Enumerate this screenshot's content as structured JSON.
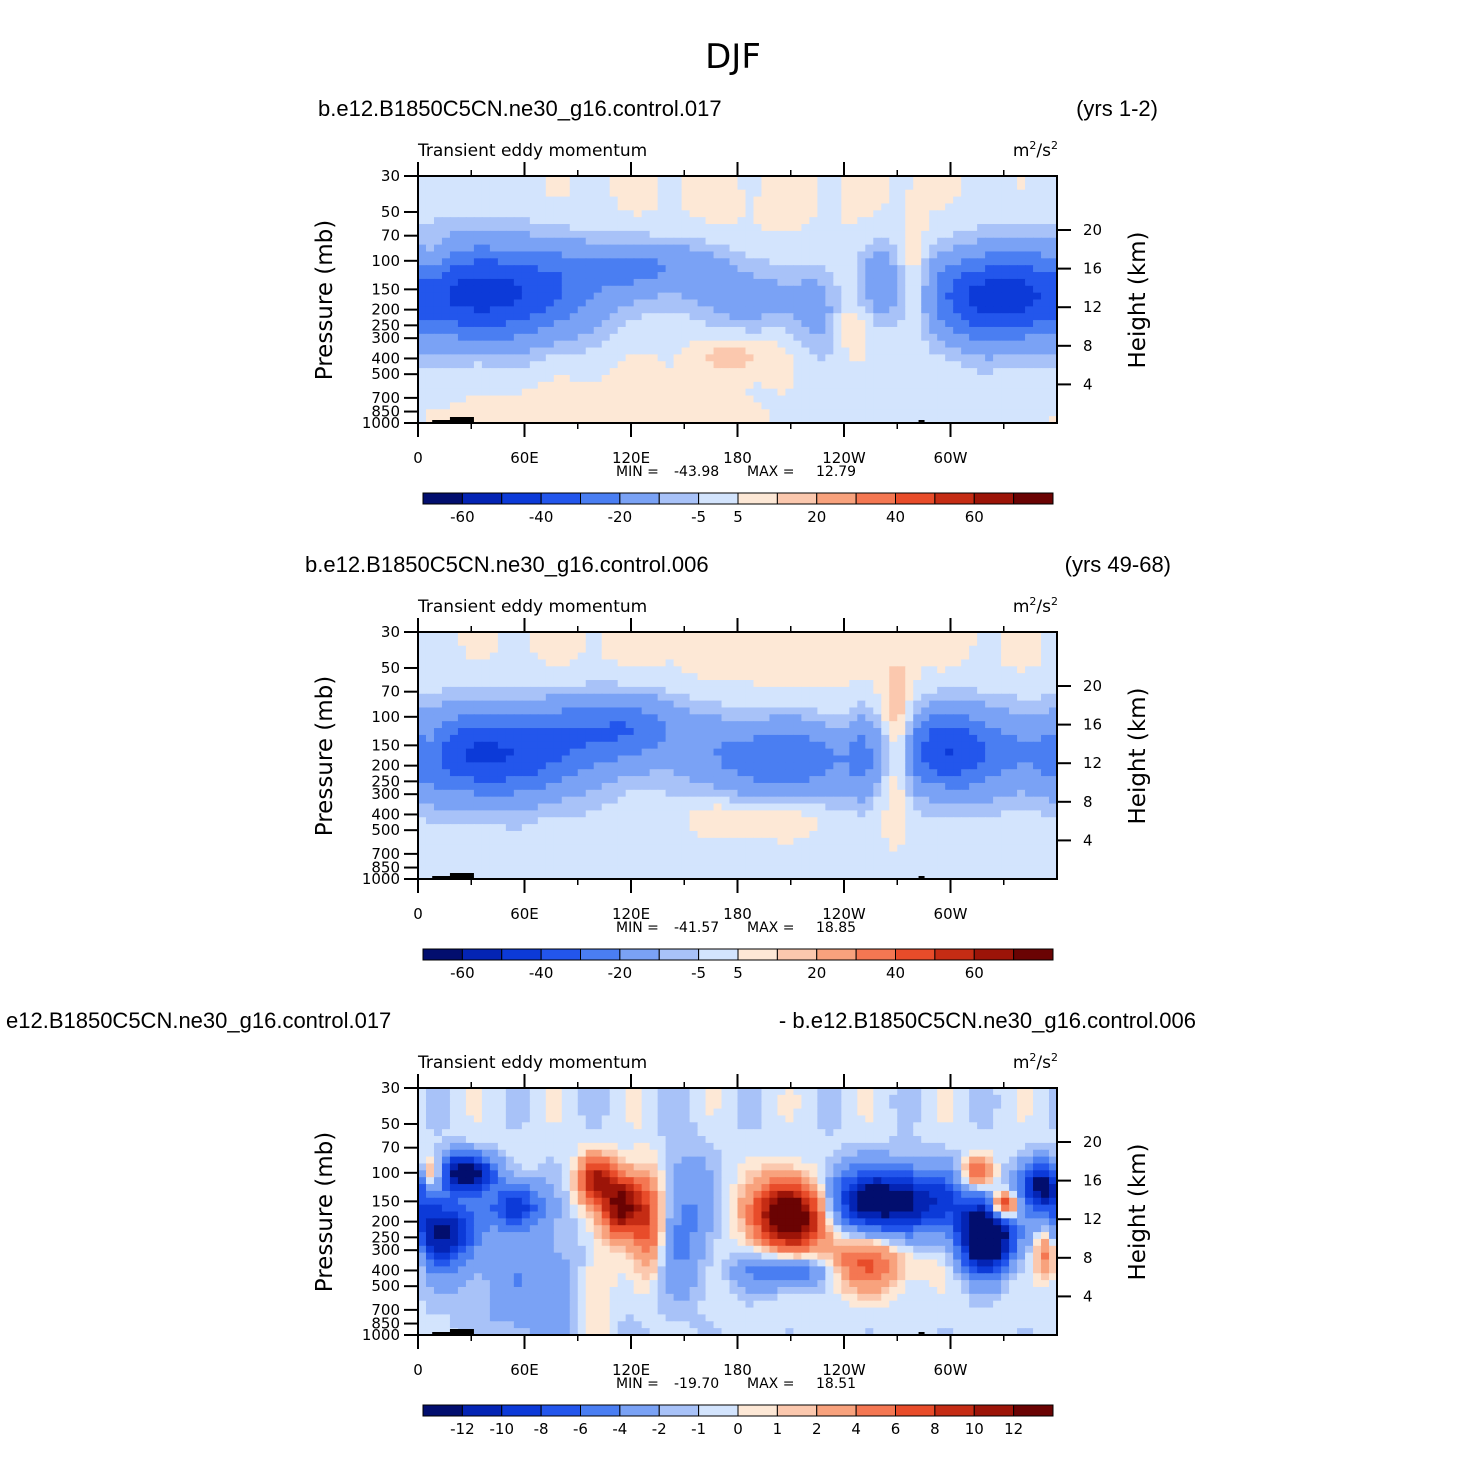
{
  "season": "DJF",
  "colors": [
    "#020e6e",
    "#0424b4",
    "#0c3ad8",
    "#2356ec",
    "#4a7ef2",
    "#7aa2f5",
    "#a8c2f8",
    "#d3e4fd",
    "#fde8d6",
    "#fbc8ae",
    "#f8a27d",
    "#f47752",
    "#e84c2a",
    "#c52c14",
    "#9c1408",
    "#6a0303"
  ],
  "chart_data": [
    {
      "type": "heatmap",
      "case_title": "b.e12.B1850C5CN.ne30_g16.control.017",
      "years": "(yrs 1-2)",
      "variable": "Transient eddy momentum",
      "units_base": "m",
      "units_exp1": "2",
      "units_mid": "/s",
      "units_exp2": "2",
      "ylabel": "Pressure (mb)",
      "y2label": "Height (km)",
      "x_ticks": [
        "0",
        "60E",
        "120E",
        "180",
        "120W",
        "60W"
      ],
      "pressure_ticks": [
        "30",
        "50",
        "70",
        "100",
        "150",
        "200",
        "250",
        "300",
        "400",
        "500",
        "700",
        "850",
        "1000"
      ],
      "height_ticks": [
        "20",
        "16",
        "12",
        "8",
        "4"
      ],
      "min_label": "MIN =",
      "min_value": "-43.98",
      "max_label": "MAX =",
      "max_value": "12.79",
      "colorbar_labels": [
        "-60",
        "-40",
        "-20",
        "-5",
        "5",
        "20",
        "40",
        "60"
      ],
      "blobs": [
        {
          "lon": 40,
          "p": 160,
          "dlon": 42,
          "dlogp": 0.22,
          "v": -44
        },
        {
          "lon": 120,
          "p": 110,
          "dlon": 28,
          "dlogp": 0.12,
          "v": -14
        },
        {
          "lon": 150,
          "p": 110,
          "dlon": 20,
          "dlogp": 0.12,
          "v": -8
        },
        {
          "lon": 185,
          "p": 170,
          "dlon": 22,
          "dlogp": 0.15,
          "v": -14
        },
        {
          "lon": 225,
          "p": 200,
          "dlon": 9,
          "dlogp": 0.2,
          "v": -11
        },
        {
          "lon": 260,
          "p": 130,
          "dlon": 8,
          "dlogp": 0.16,
          "v": -15
        },
        {
          "lon": 280,
          "p": 160,
          "dlon": 5,
          "dlogp": 0.3,
          "v": 9
        },
        {
          "lon": 320,
          "p": 170,
          "dlon": 24,
          "dlogp": 0.2,
          "v": -38
        },
        {
          "lon": 180,
          "p": 380,
          "dlon": 15,
          "dlogp": 0.08,
          "v": 8
        },
        {
          "lon": 245,
          "p": 260,
          "dlon": 6,
          "dlogp": 0.1,
          "v": 7
        },
        {
          "lon": 8,
          "p": 100,
          "dlon": 6,
          "dlogp": 0.1,
          "v": 9
        },
        {
          "lon": 100,
          "p": 800,
          "dlon": 80,
          "dlogp": 0.6,
          "v": 3
        },
        {
          "lon": 200,
          "p": 40,
          "dlon": 120,
          "dlogp": 0.3,
          "v": 2
        }
      ],
      "background": -1.5
    },
    {
      "type": "heatmap",
      "case_title": "b.e12.B1850C5CN.ne30_g16.control.006",
      "years": "(yrs 49-68)",
      "variable": "Transient eddy momentum",
      "units_base": "m",
      "units_exp1": "2",
      "units_mid": "/s",
      "units_exp2": "2",
      "ylabel": "Pressure (mb)",
      "y2label": "Height (km)",
      "x_ticks": [
        "0",
        "60E",
        "120E",
        "180",
        "120W",
        "60W"
      ],
      "pressure_ticks": [
        "30",
        "50",
        "70",
        "100",
        "150",
        "200",
        "250",
        "300",
        "400",
        "500",
        "700",
        "850",
        "1000"
      ],
      "height_ticks": [
        "20",
        "16",
        "12",
        "8",
        "4"
      ],
      "min_label": "MIN =",
      "min_value": "-41.57",
      "max_label": "MAX =",
      "max_value": "18.85",
      "colorbar_labels": [
        "-60",
        "-40",
        "-20",
        "-5",
        "5",
        "20",
        "40",
        "60"
      ],
      "blobs": [
        {
          "lon": 40,
          "p": 170,
          "dlon": 40,
          "dlogp": 0.2,
          "v": -40
        },
        {
          "lon": 115,
          "p": 115,
          "dlon": 28,
          "dlogp": 0.15,
          "v": -24
        },
        {
          "lon": 205,
          "p": 180,
          "dlon": 35,
          "dlogp": 0.17,
          "v": -28
        },
        {
          "lon": 300,
          "p": 160,
          "dlon": 22,
          "dlogp": 0.19,
          "v": -36
        },
        {
          "lon": 270,
          "p": 150,
          "dlon": 6,
          "dlogp": 0.3,
          "v": 19
        },
        {
          "lon": 250,
          "p": 190,
          "dlon": 5,
          "dlogp": 0.25,
          "v": -8
        },
        {
          "lon": 190,
          "p": 420,
          "dlon": 25,
          "dlogp": 0.08,
          "v": 9
        },
        {
          "lon": 8,
          "p": 150,
          "dlon": 5,
          "dlogp": 0.1,
          "v": 8
        },
        {
          "lon": 200,
          "p": 40,
          "dlon": 140,
          "dlogp": 0.3,
          "v": 3
        }
      ],
      "background": -1.5
    },
    {
      "type": "heatmap",
      "case_title": "e12.B1850C5CN.ne30_g16.control.017",
      "years": "- b.e12.B1850C5CN.ne30_g16.control.006",
      "variable": "Transient eddy momentum",
      "units_base": "m",
      "units_exp1": "2",
      "units_mid": "/s",
      "units_exp2": "2",
      "ylabel": "Pressure (mb)",
      "y2label": "Height (km)",
      "x_ticks": [
        "0",
        "60E",
        "120E",
        "180",
        "120W",
        "60W"
      ],
      "pressure_ticks": [
        "30",
        "50",
        "70",
        "100",
        "150",
        "200",
        "250",
        "300",
        "400",
        "500",
        "700",
        "850",
        "1000"
      ],
      "height_ticks": [
        "20",
        "16",
        "12",
        "8",
        "4"
      ],
      "min_label": "MIN =",
      "min_value": "-19.70",
      "max_label": "MAX =",
      "max_value": "18.51",
      "colorbar_labels": [
        "-12",
        "-10",
        "-8",
        "-6",
        "-4",
        "-2",
        "-1",
        "0",
        "1",
        "2",
        "4",
        "6",
        "8",
        "10",
        "12"
      ],
      "blobs": [
        {
          "lon": 25,
          "p": 100,
          "dlon": 12,
          "dlogp": 0.08,
          "v": -14
        },
        {
          "lon": 8,
          "p": 100,
          "dlon": 6,
          "dlogp": 0.07,
          "v": 8
        },
        {
          "lon": 12,
          "p": 230,
          "dlon": 14,
          "dlogp": 0.15,
          "v": -12
        },
        {
          "lon": 55,
          "p": 160,
          "dlon": 10,
          "dlogp": 0.1,
          "v": -9
        },
        {
          "lon": 100,
          "p": 110,
          "dlon": 7,
          "dlogp": 0.1,
          "v": 10
        },
        {
          "lon": 115,
          "p": 160,
          "dlon": 8,
          "dlogp": 0.14,
          "v": 14
        },
        {
          "lon": 130,
          "p": 200,
          "dlon": 6,
          "dlogp": 0.22,
          "v": 7
        },
        {
          "lon": 150,
          "p": 200,
          "dlon": 10,
          "dlogp": 0.3,
          "v": -4
        },
        {
          "lon": 210,
          "p": 180,
          "dlon": 14,
          "dlogp": 0.15,
          "v": 19
        },
        {
          "lon": 210,
          "p": 400,
          "dlon": 18,
          "dlogp": 0.08,
          "v": -7
        },
        {
          "lon": 265,
          "p": 150,
          "dlon": 28,
          "dlogp": 0.14,
          "v": -14
        },
        {
          "lon": 250,
          "p": 360,
          "dlon": 18,
          "dlogp": 0.12,
          "v": 7
        },
        {
          "lon": 320,
          "p": 250,
          "dlon": 10,
          "dlogp": 0.14,
          "v": -20
        },
        {
          "lon": 330,
          "p": 160,
          "dlon": 5,
          "dlogp": 0.06,
          "v": 13
        },
        {
          "lon": 315,
          "p": 100,
          "dlon": 6,
          "dlogp": 0.07,
          "v": 7
        },
        {
          "lon": 352,
          "p": 120,
          "dlon": 8,
          "dlogp": 0.1,
          "v": -12
        },
        {
          "lon": 355,
          "p": 300,
          "dlon": 5,
          "dlogp": 0.12,
          "v": 9
        },
        {
          "lon": 70,
          "p": 500,
          "dlon": 30,
          "dlogp": 0.25,
          "v": -3
        },
        {
          "lon": 100,
          "p": 500,
          "dlon": 8,
          "dlogp": 0.2,
          "v": 4
        }
      ],
      "background": -0.6
    }
  ]
}
